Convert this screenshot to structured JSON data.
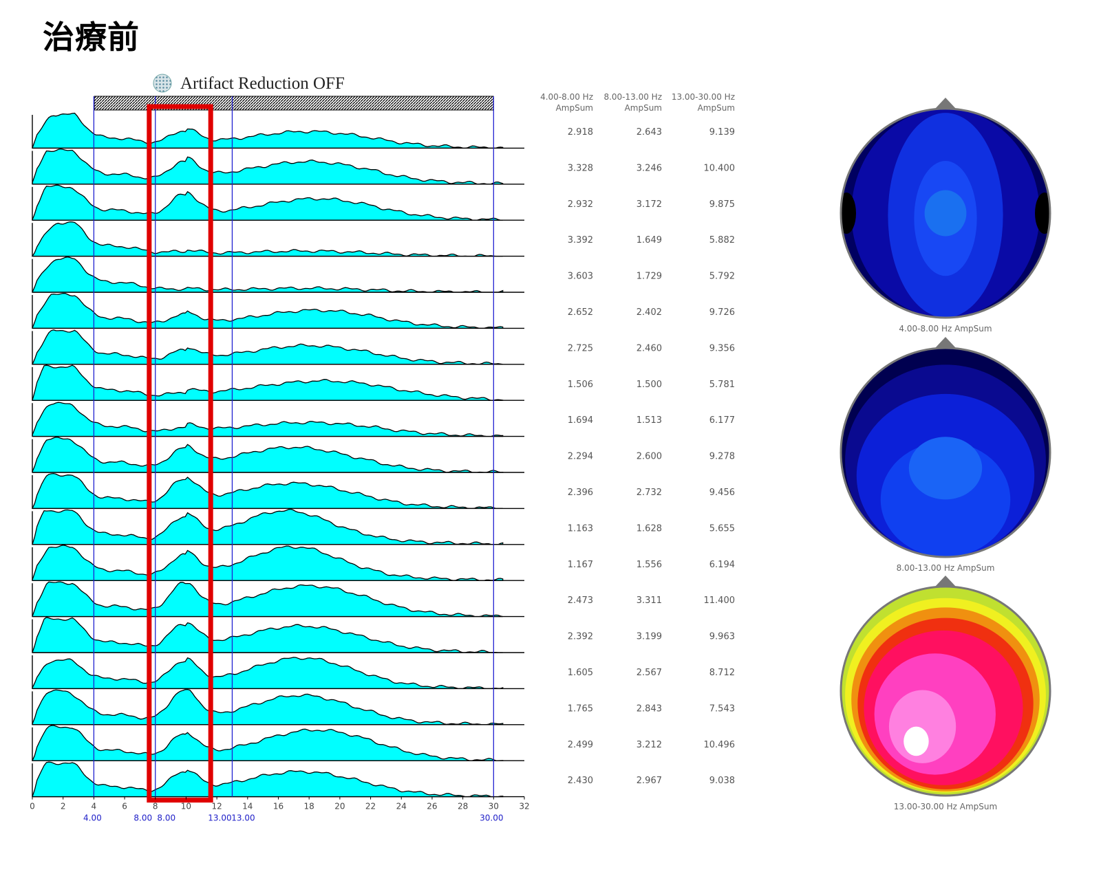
{
  "title": "治療前",
  "artifact_label": "Artifact Reduction OFF",
  "colors": {
    "spectrum_fill": "#00ffff",
    "band_line": "#2020d0",
    "highlight": "#e00000"
  },
  "chart_data": {
    "type": "area",
    "xlim": [
      0,
      32
    ],
    "x_ticks": [
      "0",
      "2",
      "4",
      "6",
      "8",
      "10",
      "12",
      "14",
      "16",
      "18",
      "20",
      "22",
      "24",
      "26",
      "28",
      "30",
      "32"
    ],
    "bands": [
      4.0,
      8.0,
      13.0,
      30.0
    ],
    "band_labels": [
      "4.00",
      "8.00",
      "8.00",
      "13.00",
      "13.00",
      "30.00"
    ],
    "highlight_range": [
      7.6,
      11.6
    ],
    "column_headers": [
      {
        "range": "4.00-8.00 Hz",
        "measure": "AmpSum"
      },
      {
        "range": "8.00-13.00 Hz",
        "measure": "AmpSum"
      },
      {
        "range": "13.00-30.00 Hz",
        "measure": "AmpSum"
      }
    ],
    "channels": [
      {
        "values": [
          "2.918",
          "2.643",
          "9.139"
        ],
        "theta_peak": 1.0,
        "theta_dip": 0.45,
        "alpha": 0.45,
        "alpha_x": 9.8,
        "beta": 0.45,
        "beta_x": 18.0,
        "beta_w": 4.5,
        "tail": 0.1
      },
      {
        "values": [
          "3.328",
          "3.246",
          "10.400"
        ],
        "theta_peak": 0.95,
        "theta_dip": 0.7,
        "alpha": 0.6,
        "alpha_x": 9.8,
        "beta": 0.6,
        "beta_x": 18.0,
        "beta_w": 4.5,
        "tail": 0.15
      },
      {
        "values": [
          "2.932",
          "3.172",
          "9.875"
        ],
        "theta_peak": 0.9,
        "theta_dip": 0.75,
        "alpha": 0.7,
        "alpha_x": 9.8,
        "beta": 0.6,
        "beta_x": 18.5,
        "beta_w": 4.5,
        "tail": 0.12
      },
      {
        "values": [
          "3.392",
          "1.649",
          "5.882"
        ],
        "theta_peak": 1.0,
        "theta_dip": 0.3,
        "alpha": 0.1,
        "alpha_x": 9.8,
        "beta": 0.1,
        "beta_x": 18.0,
        "beta_w": 4.0,
        "tail": 0.05
      },
      {
        "values": [
          "3.603",
          "1.729",
          "5.792"
        ],
        "theta_peak": 1.0,
        "theta_dip": 0.35,
        "alpha": 0.05,
        "alpha_x": 9.8,
        "beta": 0.08,
        "beta_x": 18.0,
        "beta_w": 4.0,
        "tail": 0.03
      },
      {
        "values": [
          "2.652",
          "2.402",
          "9.726"
        ],
        "theta_peak": 1.0,
        "theta_dip": 0.5,
        "alpha": 0.35,
        "alpha_x": 9.8,
        "beta": 0.5,
        "beta_x": 18.5,
        "beta_w": 4.5,
        "tail": 0.1
      },
      {
        "values": [
          "2.725",
          "2.460",
          "9.356"
        ],
        "theta_peak": 1.0,
        "theta_dip": 0.45,
        "alpha": 0.35,
        "alpha_x": 9.8,
        "beta": 0.5,
        "beta_x": 18.0,
        "beta_w": 4.5,
        "tail": 0.12
      },
      {
        "values": [
          "1.506",
          "1.500",
          "5.781"
        ],
        "theta_peak": 0.95,
        "theta_dip": 0.9,
        "alpha": 0.15,
        "alpha_x": 9.8,
        "beta": 0.55,
        "beta_x": 19.0,
        "beta_w": 5.5,
        "tail": 0.1
      },
      {
        "values": [
          "1.694",
          "1.513",
          "6.177"
        ],
        "theta_peak": 0.85,
        "theta_dip": 0.6,
        "alpha": 0.2,
        "alpha_x": 9.8,
        "beta": 0.35,
        "beta_x": 18.0,
        "beta_w": 5.0,
        "tail": 0.1
      },
      {
        "values": [
          "2.294",
          "2.600",
          "9.278"
        ],
        "theta_peak": 0.9,
        "theta_dip": 0.7,
        "alpha": 0.6,
        "alpha_x": 9.8,
        "beta": 0.75,
        "beta_x": 17.0,
        "beta_w": 4.5,
        "tail": 0.1
      },
      {
        "values": [
          "2.396",
          "2.732",
          "9.456"
        ],
        "theta_peak": 0.95,
        "theta_dip": 0.65,
        "alpha": 0.75,
        "alpha_x": 9.8,
        "beta": 0.75,
        "beta_x": 17.0,
        "beta_w": 4.5,
        "tail": 0.1
      },
      {
        "values": [
          "1.163",
          "1.628",
          "5.655"
        ],
        "theta_peak": 0.95,
        "theta_dip": 0.85,
        "alpha": 0.75,
        "alpha_x": 9.8,
        "beta": 1.0,
        "beta_x": 16.5,
        "beta_w": 3.5,
        "tail": 0.15
      },
      {
        "values": [
          "1.167",
          "1.556",
          "6.194"
        ],
        "theta_peak": 0.95,
        "theta_dip": 0.6,
        "alpha": 0.7,
        "alpha_x": 9.8,
        "beta": 1.0,
        "beta_x": 17.0,
        "beta_w": 3.5,
        "tail": 0.15
      },
      {
        "values": [
          "2.473",
          "3.311",
          "11.400"
        ],
        "theta_peak": 0.95,
        "theta_dip": 0.65,
        "alpha": 0.9,
        "alpha_x": 9.8,
        "beta": 0.95,
        "beta_x": 18.0,
        "beta_w": 4.5,
        "tail": 0.1
      },
      {
        "values": [
          "2.392",
          "3.199",
          "9.963"
        ],
        "theta_peak": 0.95,
        "theta_dip": 0.8,
        "alpha": 0.75,
        "alpha_x": 9.8,
        "beta": 0.8,
        "beta_x": 17.5,
        "beta_w": 4.5,
        "tail": 0.1
      },
      {
        "values": [
          "1.605",
          "2.567",
          "8.712"
        ],
        "theta_peak": 0.75,
        "theta_dip": 0.45,
        "alpha": 0.75,
        "alpha_x": 9.8,
        "beta": 0.95,
        "beta_x": 17.5,
        "beta_w": 4.0,
        "tail": 0.1
      },
      {
        "values": [
          "1.765",
          "2.843",
          "7.543"
        ],
        "theta_peak": 0.85,
        "theta_dip": 0.7,
        "alpha": 0.95,
        "alpha_x": 9.8,
        "beta": 0.9,
        "beta_x": 17.5,
        "beta_w": 4.0,
        "tail": 0.1
      },
      {
        "values": [
          "2.499",
          "3.212",
          "10.496"
        ],
        "theta_peak": 0.95,
        "theta_dip": 0.65,
        "alpha": 0.7,
        "alpha_x": 9.8,
        "beta": 0.95,
        "beta_x": 18.5,
        "beta_w": 4.5,
        "tail": 0.1
      },
      {
        "values": [
          "2.430",
          "2.967",
          "9.038"
        ],
        "theta_peak": 0.95,
        "theta_dip": 0.75,
        "alpha": 0.65,
        "alpha_x": 9.8,
        "beta": 0.75,
        "beta_x": 17.5,
        "beta_w": 4.5,
        "tail": 0.1
      }
    ],
    "topomaps": [
      {
        "label": "4.00-8.00 Hz AmpSum",
        "scheme": "blue"
      },
      {
        "label": "8.00-13.00 Hz AmpSum",
        "scheme": "blue2"
      },
      {
        "label": "13.00-30.00 Hz AmpSum",
        "scheme": "hot"
      }
    ]
  }
}
